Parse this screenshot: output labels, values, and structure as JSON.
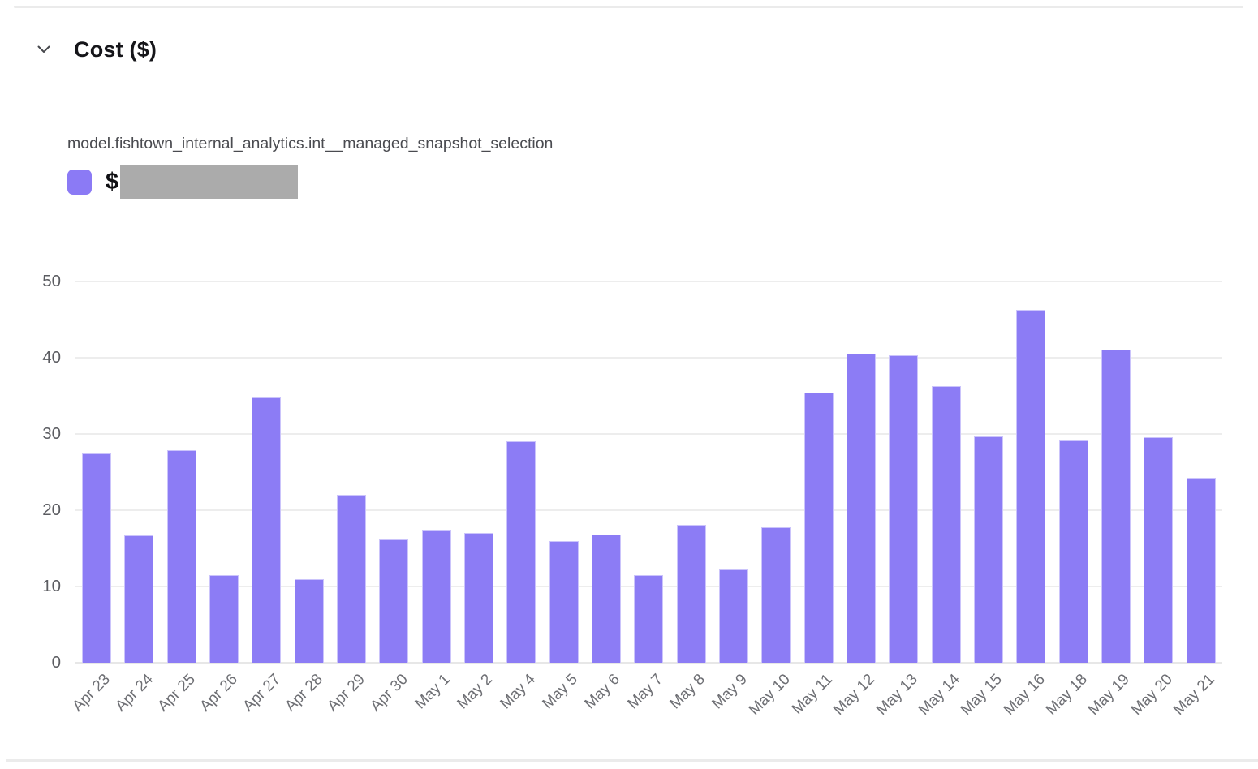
{
  "section": {
    "title": "Cost ($)",
    "collapse_icon": "chevron-down-icon",
    "expanded": true
  },
  "legend": {
    "series_label": "model.fishtown_internal_analytics.int__managed_snapshot_selection",
    "value_prefix": "$",
    "value_redacted": true
  },
  "colors": {
    "bar": "#8C7CF5",
    "legend_swatch": "#8B7AF5",
    "redaction_box": "#ABABAB",
    "gridline": "#EDEDED",
    "baseline": "#E7E7E7",
    "title_text": "#151519",
    "axis_text": "#5B5C61",
    "divider": "#EBEBEB"
  },
  "chart_data": {
    "type": "bar",
    "title": "Cost ($)",
    "series_name": "model.fishtown_internal_analytics.int__managed_snapshot_selection",
    "categories": [
      "Apr 23",
      "Apr 24",
      "Apr 25",
      "Apr 26",
      "Apr 27",
      "Apr 28",
      "Apr 29",
      "Apr 30",
      "May 1",
      "May 2",
      "May 4",
      "May 5",
      "May 6",
      "May 7",
      "May 8",
      "May 9",
      "May 10",
      "May 11",
      "May 12",
      "May 13",
      "May 14",
      "May 15",
      "May 16",
      "May 18",
      "May 19",
      "May 20",
      "May 21"
    ],
    "values": [
      27.5,
      16.7,
      27.9,
      11.5,
      34.8,
      11.0,
      22.0,
      16.2,
      17.4,
      17.0,
      29.1,
      16.0,
      16.8,
      11.5,
      18.1,
      12.2,
      17.8,
      35.4,
      40.5,
      40.3,
      36.3,
      29.7,
      46.3,
      29.2,
      41.1,
      29.6,
      24.3
    ],
    "xlabel": "",
    "ylabel": "",
    "ylim": [
      0,
      50
    ],
    "yticks": [
      0,
      10,
      20,
      30,
      40,
      50
    ],
    "grid": true,
    "x_label_rotation": -45,
    "legend_position": "top-left",
    "bar_color": "#8C7CF5"
  }
}
